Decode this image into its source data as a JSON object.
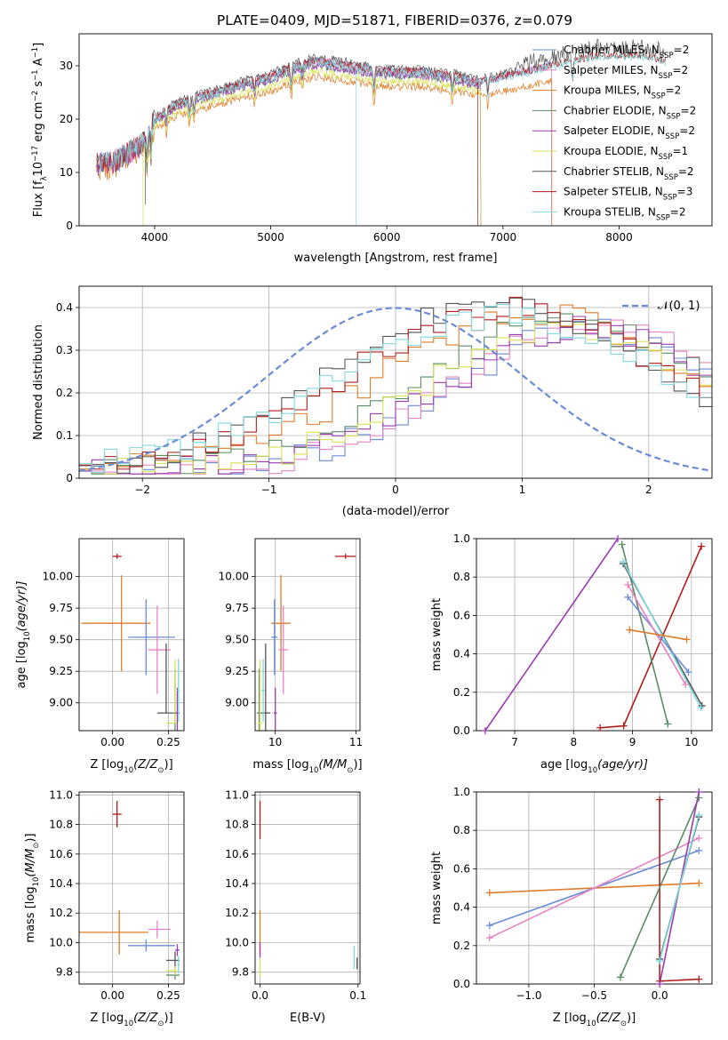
{
  "title": "PLATE=0409, MJD=51871, FIBERID=0376, z=0.079",
  "colors": {
    "Chabrier MILES": "#6a8bd6",
    "Salpeter MILES": "#e882c4",
    "Kroupa MILES": "#e07b28",
    "Chabrier ELODIE": "#5b8c66",
    "Salpeter ELODIE": "#9b3bb0",
    "Kroupa ELODIE": "#d9e253",
    "Chabrier STELIB": "#555555",
    "Salpeter STELIB": "#b01c1c",
    "Kroupa STELIB": "#7fd9dc",
    "normal": "#6a8bd6"
  },
  "chart_data": [
    {
      "type": "line",
      "panel": "spectrum",
      "xlabel_prefix": "wavelength [Angstrom, rest frame]",
      "xlim": [
        3350,
        8800
      ],
      "ylim": [
        0,
        36
      ],
      "xticks": [
        4000,
        5000,
        6000,
        7000,
        8000
      ],
      "yticks": [
        0,
        10,
        20,
        30
      ],
      "ylabel_parts": {
        "pre": "Flux [f",
        "sub1": "λ",
        "mid": "10",
        "sup1": "−17",
        "post": " erg cm",
        "sup2": "−2",
        "post2": " s",
        "sup3": "−1",
        "post3": " A",
        "sup4": "−1",
        "end": "]"
      },
      "grid": false,
      "legend": "right",
      "series": [
        {
          "name": "Chabrier MILES",
          "nssp": "2",
          "scale": 1.0
        },
        {
          "name": "Salpeter MILES",
          "nssp": "2",
          "scale": 1.0
        },
        {
          "name": "Kroupa MILES",
          "nssp": "2",
          "scale": 0.9
        },
        {
          "name": "Chabrier ELODIE",
          "nssp": "2",
          "scale": 0.97
        },
        {
          "name": "Salpeter ELODIE",
          "nssp": "2",
          "scale": 0.97
        },
        {
          "name": "Kroupa ELODIE",
          "nssp": "1",
          "scale": 0.93
        },
        {
          "name": "Chabrier STELIB",
          "nssp": "2",
          "scale": 1.02
        },
        {
          "name": "Salpeter STELIB",
          "nssp": "3",
          "scale": 1.0
        },
        {
          "name": "Kroupa STELIB",
          "nssp": "2",
          "scale": 0.99
        }
      ],
      "continuum": [
        [
          3500,
          12
        ],
        [
          3650,
          12
        ],
        [
          3850,
          15
        ],
        [
          3950,
          17
        ],
        [
          4000,
          20
        ],
        [
          4200,
          23
        ],
        [
          4500,
          25
        ],
        [
          4800,
          27
        ],
        [
          5000,
          28
        ],
        [
          5200,
          30
        ],
        [
          5400,
          31
        ],
        [
          5700,
          30
        ],
        [
          6000,
          29
        ],
        [
          6300,
          29
        ],
        [
          6600,
          28
        ],
        [
          6800,
          27
        ],
        [
          7000,
          28
        ],
        [
          7400,
          30
        ],
        [
          7800,
          32
        ],
        [
          8200,
          32
        ],
        [
          8400,
          31
        ]
      ],
      "drops": [
        {
          "name": "Kroupa ELODIE",
          "at": 3900,
          "type": "start",
          "to": 0
        },
        {
          "name": "Chabrier STELIB",
          "at": 3920,
          "type": "start",
          "to": 4
        },
        {
          "name": "Chabrier ELODIE",
          "at": 6810,
          "type": "stop",
          "to": 0
        },
        {
          "name": "Salpeter ELODIE",
          "at": 6810,
          "type": "stop",
          "to": 0
        },
        {
          "name": "Kroupa ELODIE",
          "at": 6810,
          "type": "stop",
          "to": 0
        },
        {
          "name": "Salpeter STELIB",
          "at": 6780,
          "type": "gap",
          "to": 0
        },
        {
          "name": "Chabrier MILES",
          "at": 7420,
          "type": "stop",
          "to": 0
        },
        {
          "name": "Salpeter MILES",
          "at": 7420,
          "type": "stop",
          "to": 0
        },
        {
          "name": "Kroupa MILES",
          "at": 7420,
          "type": "stop",
          "to": 0
        },
        {
          "name": "Kroupa STELIB",
          "at": 5730,
          "type": "spike",
          "to": 0
        }
      ]
    },
    {
      "type": "line",
      "panel": "residuals",
      "xlabel": "(data-model)/error",
      "ylabel": "Normed distribution",
      "xlim": [
        -2.5,
        2.5
      ],
      "ylim": [
        0,
        0.45
      ],
      "xticks": [
        -2,
        -1,
        0,
        1,
        2
      ],
      "yticks": [
        0.0,
        0.1,
        0.2,
        0.3,
        0.4
      ],
      "grid": true,
      "legend": "top-right",
      "normal_label": "𝒩(0, 1)",
      "bins": {
        "start": -2.5,
        "width": 0.1
      },
      "series": [
        {
          "name": "Chabrier MILES",
          "peak": 1.55,
          "width": 0.95,
          "amp": 0.33
        },
        {
          "name": "Salpeter MILES",
          "peak": 1.6,
          "width": 0.95,
          "amp": 0.34
        },
        {
          "name": "Kroupa MILES",
          "peak": 1.1,
          "width": 1.05,
          "amp": 0.37
        },
        {
          "name": "Chabrier ELODIE",
          "peak": 1.35,
          "width": 1.0,
          "amp": 0.35
        },
        {
          "name": "Salpeter ELODIE",
          "peak": 1.5,
          "width": 0.95,
          "amp": 0.33
        },
        {
          "name": "Kroupa ELODIE",
          "peak": 1.35,
          "width": 0.95,
          "amp": 0.34
        },
        {
          "name": "Chabrier STELIB",
          "peak": 0.8,
          "width": 1.05,
          "amp": 0.4
        },
        {
          "name": "Salpeter STELIB",
          "peak": 0.9,
          "width": 1.1,
          "amp": 0.38
        },
        {
          "name": "Kroupa STELIB",
          "peak": 0.9,
          "width": 1.15,
          "amp": 0.36
        }
      ]
    },
    {
      "type": "scatter",
      "panel": "age-vs-Z",
      "xlim": [
        -0.15,
        0.32
      ],
      "ylim": [
        8.78,
        10.3
      ],
      "xticks": [
        0.0,
        0.25
      ],
      "xtick_labels": [
        "0.00",
        "0.25"
      ],
      "yticks": [
        9.0,
        9.25,
        9.5,
        9.75,
        10.0
      ],
      "ytick_labels": [
        "9.00",
        "9.25",
        "9.50",
        "9.75",
        "10.00"
      ],
      "grid": true,
      "xlabel_main": "Z [log",
      "xlabel_sub": "10",
      "xlabel_math": "(Z/Z",
      "xlabel_sun": "⊙",
      "xlabel_end": ")]",
      "ylabel_main": "age  [log",
      "ylabel_sub": "10",
      "ylabel_math": "(age/yr)]",
      "points": [
        {
          "name": "Salpeter STELIB",
          "x": 0.02,
          "y": 10.16,
          "xe": 0.02,
          "ye": 0.02
        },
        {
          "name": "Kroupa MILES",
          "x": 0.04,
          "y": 9.63,
          "xlo": 0.18,
          "xhi": 0.13,
          "ye": 0.38
        },
        {
          "name": "Chabrier MILES",
          "x": 0.15,
          "y": 9.52,
          "xlo": 0.08,
          "xhi": 0.13,
          "ye": 0.3
        },
        {
          "name": "Salpeter MILES",
          "x": 0.2,
          "y": 9.42,
          "xlo": 0.04,
          "xhi": 0.06,
          "ye": 0.35
        },
        {
          "name": "Chabrier STELIB",
          "x": 0.24,
          "y": 8.92,
          "xlo": 0.04,
          "xhi": 0.04,
          "ylo": 0.0,
          "yhi": 0.55
        },
        {
          "name": "Chabrier ELODIE",
          "x": 0.28,
          "y": 8.92,
          "xlo": 0.02,
          "xhi": 0.02,
          "ye": 0.35
        },
        {
          "name": "Kroupa ELODIE",
          "x": 0.28,
          "y": 8.84,
          "xlo": 0.04,
          "xhi": 0.01,
          "ylo": 0.0,
          "yhi": 0.5
        },
        {
          "name": "Salpeter ELODIE",
          "x": 0.29,
          "y": 8.92,
          "xe": 0.01,
          "ye": 0.2
        },
        {
          "name": "Kroupa STELIB",
          "x": 0.295,
          "y": 9.1,
          "xe": 0.005,
          "ye": 0.25
        }
      ]
    },
    {
      "type": "scatter",
      "panel": "age-vs-mass",
      "xlim": [
        9.75,
        11.05
      ],
      "ylim": [
        8.78,
        10.3
      ],
      "xticks": [
        10,
        11
      ],
      "xtick_labels": [
        "10",
        "11"
      ],
      "yticks": [
        9.0,
        9.25,
        9.5,
        9.75,
        10.0
      ],
      "ytick_labels": [
        "9.00",
        "9.25",
        "9.50",
        "9.75",
        "10.00"
      ],
      "grid": true,
      "xlabel_main": "mass [log",
      "xlabel_sub": "10",
      "xlabel_math": "(M/M",
      "xlabel_sun": "⊙",
      "xlabel_end": ")]",
      "points": [
        {
          "name": "Salpeter STELIB",
          "x": 10.87,
          "y": 10.16,
          "xe": 0.13,
          "ye": 0.02
        },
        {
          "name": "Kroupa MILES",
          "x": 10.07,
          "y": 9.63,
          "xe": 0.12,
          "ye": 0.38
        },
        {
          "name": "Chabrier MILES",
          "x": 9.99,
          "y": 9.52,
          "xe": 0.04,
          "ye": 0.3
        },
        {
          "name": "Salpeter MILES",
          "x": 10.1,
          "y": 9.42,
          "xe": 0.06,
          "ye": 0.35
        },
        {
          "name": "Chabrier STELIB",
          "x": 9.88,
          "y": 8.92,
          "xe": 0.06,
          "ye": 0.55
        },
        {
          "name": "Chabrier ELODIE",
          "x": 9.8,
          "y": 8.92,
          "xe": 0.03,
          "ye": 0.35
        },
        {
          "name": "Kroupa ELODIE",
          "x": 9.81,
          "y": 8.84,
          "xe": 0.03,
          "ye": 0.5
        },
        {
          "name": "Salpeter ELODIE",
          "x": 10.0,
          "y": 8.92,
          "xe": 0.02,
          "ye": 0.2
        },
        {
          "name": "Kroupa STELIB",
          "x": 9.85,
          "y": 9.1,
          "xe": 0.02,
          "ye": 0.25
        }
      ]
    },
    {
      "type": "line",
      "panel": "mass-weight-vs-age",
      "xlim": [
        6.35,
        10.35
      ],
      "ylim": [
        0,
        1
      ],
      "xticks": [
        7,
        8,
        9,
        10
      ],
      "xtick_labels": [
        "7",
        "8",
        "9",
        "10"
      ],
      "yticks": [
        0.0,
        0.2,
        0.4,
        0.6,
        0.8,
        1.0
      ],
      "ytick_labels": [
        "0.0",
        "0.2",
        "0.4",
        "0.6",
        "0.8",
        "1.0"
      ],
      "grid": true,
      "ylabel": "mass weight",
      "xlabel_main": "age  [log",
      "xlabel_sub": "10",
      "xlabel_math": "(age/yr)]",
      "series": [
        {
          "name": "Salpeter ELODIE",
          "points": [
            [
              6.5,
              0.0
            ],
            [
              8.75,
              1.0
            ]
          ]
        },
        {
          "name": "Salpeter STELIB",
          "points": [
            [
              8.45,
              0.015
            ],
            [
              8.85,
              0.025
            ],
            [
              10.17,
              0.96
            ]
          ]
        },
        {
          "name": "Chabrier ELODIE",
          "points": [
            [
              8.82,
              0.97
            ],
            [
              9.6,
              0.035
            ]
          ]
        },
        {
          "name": "Chabrier STELIB",
          "points": [
            [
              8.84,
              0.87
            ],
            [
              10.18,
              0.13
            ]
          ]
        },
        {
          "name": "Kroupa STELIB",
          "points": [
            [
              8.84,
              0.88
            ],
            [
              10.16,
              0.12
            ]
          ]
        },
        {
          "name": "Chabrier MILES",
          "points": [
            [
              8.92,
              0.695
            ],
            [
              9.95,
              0.305
            ]
          ]
        },
        {
          "name": "Salpeter MILES",
          "points": [
            [
              8.92,
              0.76
            ],
            [
              9.9,
              0.24
            ]
          ]
        },
        {
          "name": "Kroupa MILES",
          "points": [
            [
              8.95,
              0.525
            ],
            [
              9.92,
              0.475
            ]
          ]
        }
      ]
    },
    {
      "type": "scatter",
      "panel": "mass-vs-Z",
      "xlim": [
        -0.15,
        0.32
      ],
      "ylim": [
        9.72,
        11.02
      ],
      "xticks": [
        0.0,
        0.25
      ],
      "xtick_labels": [
        "0.00",
        "0.25"
      ],
      "yticks": [
        9.8,
        10.0,
        10.2,
        10.4,
        10.6,
        10.8,
        11.0
      ],
      "ytick_labels": [
        "9.8",
        "10.0",
        "10.2",
        "10.4",
        "10.6",
        "10.8",
        "11.0"
      ],
      "grid": true,
      "xlabel_main": "Z [log",
      "xlabel_sub": "10",
      "xlabel_math": "(Z/Z",
      "xlabel_sun": "⊙",
      "xlabel_end": ")]",
      "ylabel_main": "mass [log",
      "ylabel_sub": "10",
      "ylabel_math": "(M/M",
      "ylabel_sun": "⊙",
      "ylabel_end": ")]",
      "points": [
        {
          "name": "Salpeter STELIB",
          "x": 0.02,
          "y": 10.87,
          "xe": 0.02,
          "ye": 0.09
        },
        {
          "name": "Kroupa MILES",
          "x": 0.03,
          "y": 10.07,
          "xlo": 0.18,
          "xhi": 0.13,
          "ye": 0.15
        },
        {
          "name": "Chabrier MILES",
          "x": 0.15,
          "y": 9.98,
          "xlo": 0.08,
          "xhi": 0.13,
          "ye": 0.04
        },
        {
          "name": "Salpeter MILES",
          "x": 0.2,
          "y": 10.09,
          "xlo": 0.04,
          "xhi": 0.06,
          "ye": 0.06
        },
        {
          "name": "Chabrier STELIB",
          "x": 0.28,
          "y": 9.88,
          "xlo": 0.04,
          "xhi": 0.02,
          "ye": 0.06
        },
        {
          "name": "Chabrier ELODIE",
          "x": 0.28,
          "y": 9.78,
          "xlo": 0.04,
          "xhi": 0.02,
          "ye": 0.03
        },
        {
          "name": "Kroupa ELODIE",
          "x": 0.28,
          "y": 9.81,
          "xlo": 0.04,
          "xhi": 0.01,
          "ye": 0.03
        },
        {
          "name": "Salpeter ELODIE",
          "x": 0.29,
          "y": 9.95,
          "xe": 0.01,
          "ye": 0.04
        },
        {
          "name": "Kroupa STELIB",
          "x": 0.295,
          "y": 9.85,
          "xe": 0.005,
          "ye": 0.06
        }
      ]
    },
    {
      "type": "scatter",
      "panel": "mass-vs-EBV",
      "xlim": [
        -0.005,
        0.102
      ],
      "ylim": [
        9.72,
        11.02
      ],
      "xticks": [
        0.0,
        0.1
      ],
      "xtick_labels": [
        "0.0",
        "0.1"
      ],
      "yticks": [
        9.8,
        10.0,
        10.2,
        10.4,
        10.6,
        10.8,
        11.0
      ],
      "ytick_labels": [
        "9.8",
        "10.0",
        "10.2",
        "10.4",
        "10.6",
        "10.8",
        "11.0"
      ],
      "grid": true,
      "xlabel": "E(B-V)",
      "points": [
        {
          "name": "Salpeter STELIB",
          "x": 0.0,
          "y": 10.83,
          "ye": 0.13
        },
        {
          "name": "Kroupa MILES",
          "x": 0.0,
          "y": 10.07,
          "ye": 0.15
        },
        {
          "name": "Salpeter ELODIE",
          "x": 0.0,
          "y": 9.95,
          "ye": 0.05
        },
        {
          "name": "Kroupa ELODIE",
          "x": 0.0,
          "y": 9.83,
          "ye": 0.06
        },
        {
          "name": "Kroupa STELIB",
          "x": 0.096,
          "y": 9.9,
          "ye": 0.08
        },
        {
          "name": "Chabrier STELIB",
          "x": 0.099,
          "y": 9.86,
          "ye": 0.04
        }
      ]
    },
    {
      "type": "line",
      "panel": "mass-weight-vs-Z",
      "xlim": [
        -1.4,
        0.4
      ],
      "ylim": [
        0,
        1
      ],
      "xticks": [
        -1.0,
        -0.5,
        0.0
      ],
      "xtick_labels": [
        "−1.0",
        "−0.5",
        "0.0"
      ],
      "yticks": [
        0.0,
        0.2,
        0.4,
        0.6,
        0.8,
        1.0
      ],
      "ytick_labels": [
        "0.0",
        "0.2",
        "0.4",
        "0.6",
        "0.8",
        "1.0"
      ],
      "grid": true,
      "ylabel": "mass weight",
      "xlabel_main": "Z [log",
      "xlabel_sub": "10",
      "xlabel_math": "(Z/Z",
      "xlabel_sun": "⊙",
      "xlabel_end": ")]",
      "series": [
        {
          "name": "Kroupa MILES",
          "points": [
            [
              -1.3,
              0.475
            ],
            [
              0.3,
              0.525
            ]
          ]
        },
        {
          "name": "Chabrier MILES",
          "points": [
            [
              -1.3,
              0.305
            ],
            [
              0.3,
              0.695
            ]
          ]
        },
        {
          "name": "Salpeter MILES",
          "points": [
            [
              -1.3,
              0.24
            ],
            [
              0.3,
              0.76
            ]
          ]
        },
        {
          "name": "Salpeter STELIB",
          "points": [
            [
              0.0,
              0.96
            ],
            [
              0.0,
              0.015
            ],
            [
              0.3,
              0.025
            ]
          ]
        },
        {
          "name": "Chabrier ELODIE",
          "points": [
            [
              -0.3,
              0.035
            ],
            [
              0.3,
              0.97
            ]
          ]
        },
        {
          "name": "Salpeter ELODIE",
          "points": [
            [
              0.0,
              0.0
            ],
            [
              0.3,
              1.0
            ]
          ]
        },
        {
          "name": "Chabrier STELIB",
          "points": [
            [
              0.0,
              0.13
            ],
            [
              0.3,
              0.87
            ]
          ]
        },
        {
          "name": "Kroupa STELIB",
          "points": [
            [
              0.0,
              0.12
            ],
            [
              0.3,
              0.88
            ]
          ]
        }
      ]
    }
  ]
}
